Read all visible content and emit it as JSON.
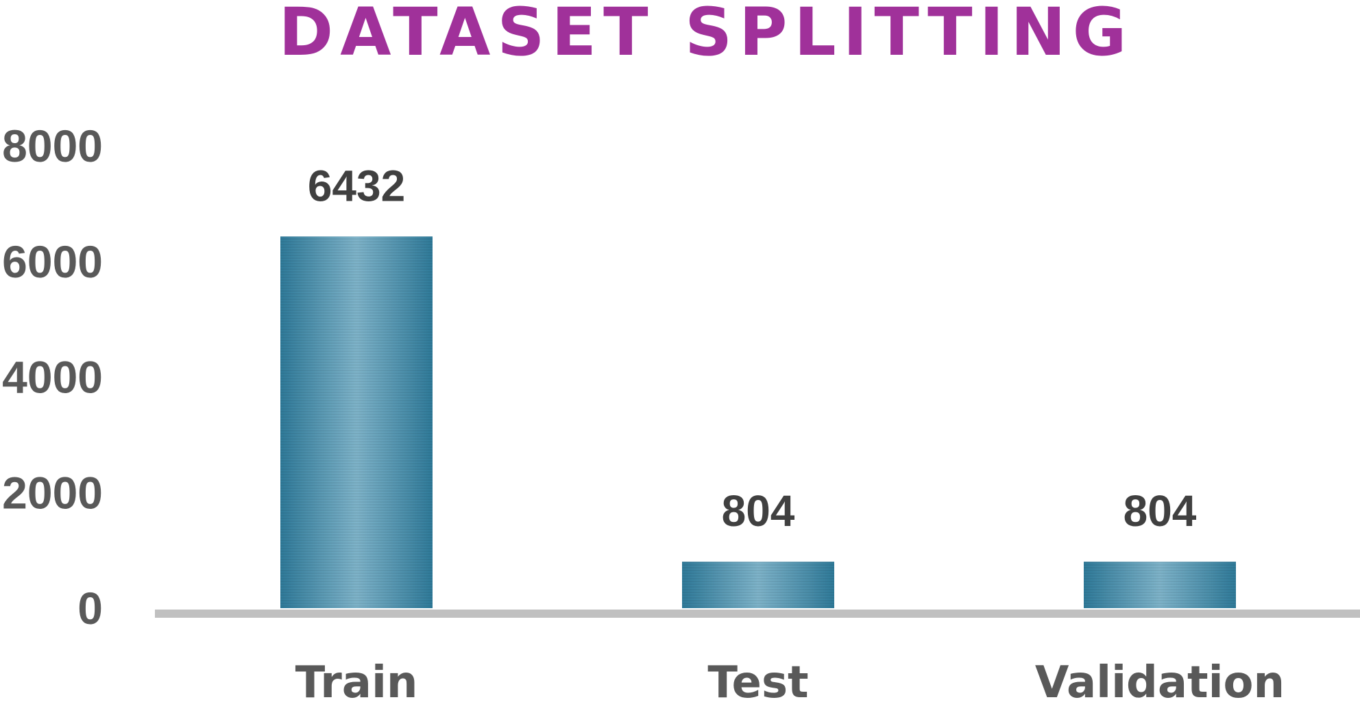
{
  "chart_data": {
    "type": "bar",
    "title": "DATASET SPLITTING",
    "categories": [
      "Train",
      "Test",
      "Validation"
    ],
    "values": [
      6432,
      804,
      804
    ],
    "data_labels": [
      "6432",
      "804",
      "804"
    ],
    "ylim": [
      0,
      8000
    ],
    "yticks": [
      0,
      2000,
      4000,
      6000,
      8000
    ],
    "ytick_labels": [
      "0",
      "2000",
      "4000",
      "6000",
      "8000"
    ],
    "xlabel": "",
    "ylabel": "",
    "grid": false,
    "legend": "none",
    "colors": {
      "title": "#A0319A",
      "bar_light": "#7EB3C9",
      "bar_dark": "#2F7A99",
      "axis_line": "#C0C0C0",
      "tick_text": "#595959",
      "category_text": "#595959",
      "data_label_text": "#404040"
    }
  }
}
